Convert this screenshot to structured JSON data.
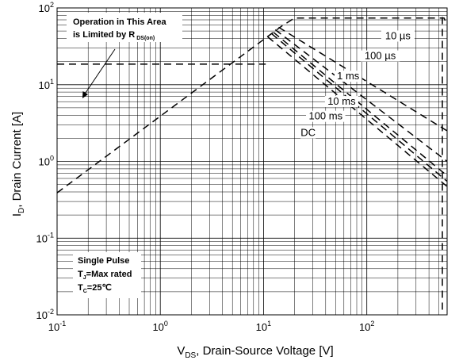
{
  "chart_data": {
    "type": "line",
    "xscale": "log",
    "yscale": "log",
    "xlim": [
      0.1,
      600
    ],
    "ylim": [
      0.01,
      100
    ],
    "grid": true,
    "xlabel": {
      "main": "V",
      "sub": "DS",
      "rest": ", Drain-Source Voltage [V]"
    },
    "ylabel": {
      "main": "I",
      "sub": "D",
      "rest": ", Drain Current [A]"
    },
    "xticks": [
      {
        "value": 0.1,
        "base": "10",
        "exp": "-1"
      },
      {
        "value": 1,
        "base": "10",
        "exp": "0"
      },
      {
        "value": 10,
        "base": "10",
        "exp": "1"
      },
      {
        "value": 100,
        "base": "10",
        "exp": "2"
      }
    ],
    "yticks": [
      {
        "value": 0.01,
        "base": "10",
        "exp": "-2"
      },
      {
        "value": 0.1,
        "base": "10",
        "exp": "-1"
      },
      {
        "value": 1,
        "base": "10",
        "exp": "0"
      },
      {
        "value": 10,
        "base": "10",
        "exp": "1"
      },
      {
        "value": 100,
        "base": "10",
        "exp": "2"
      }
    ],
    "annotations": {
      "area_line1": "Operation in This Area",
      "area_line2_main": "is Limited by R",
      "area_line2_sub": "DS(on)",
      "pulse": "Single Pulse",
      "tj_main": "T",
      "tj_sub": "J",
      "tj_rest": "=Max rated",
      "tc_main": "T",
      "tc_sub": "C",
      "tc_rest": "=25℃"
    },
    "series": [
      {
        "name": "10 µs",
        "label_at": [
          200,
          40
        ],
        "points": [
          [
            0.1,
            0.39
          ],
          [
            15,
            58
          ],
          [
            20,
            74
          ],
          [
            560,
            74
          ],
          [
            600,
            60
          ]
        ]
      },
      {
        "name": "100 µs",
        "label_at": [
          135,
          22
        ],
        "points": [
          [
            14,
            56
          ],
          [
            600,
            2.5
          ]
        ]
      },
      {
        "name": "1 ms",
        "label_at": [
          66,
          12
        ],
        "points": [
          [
            13,
            52
          ],
          [
            600,
            1.0
          ]
        ]
      },
      {
        "name": "10 ms",
        "label_at": [
          57,
          5.6
        ],
        "points": [
          [
            12.5,
            48
          ],
          [
            600,
            0.65
          ]
        ]
      },
      {
        "name": "100 ms",
        "label_at": [
          40,
          3.6
        ],
        "points": [
          [
            12,
            46
          ],
          [
            600,
            0.55
          ]
        ]
      },
      {
        "name": "DC",
        "label_at": [
          27,
          2.2
        ],
        "points": [
          [
            11,
            42
          ],
          [
            600,
            0.47
          ]
        ]
      },
      {
        "name": "",
        "label_at": null,
        "points": [
          [
            0.1,
            18.5
          ],
          [
            10.5,
            18.5
          ]
        ]
      },
      {
        "name": "",
        "label_at": null,
        "points": [
          [
            540,
            76
          ],
          [
            540,
            0.01
          ]
        ]
      }
    ]
  }
}
